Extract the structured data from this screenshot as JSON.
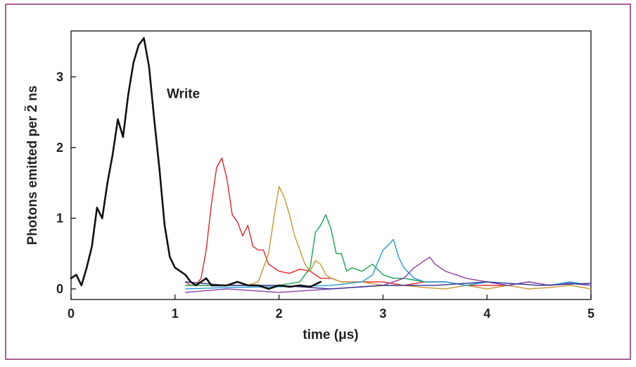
{
  "chart_data": {
    "type": "line",
    "title": "",
    "xlabel": "time (μs)",
    "ylabel": "Photons emitted per ~2 ns",
    "ylabel_display": "Photons emitted per 2̃ ns",
    "xlim": [
      0,
      5
    ],
    "ylim": [
      -0.15,
      3.65
    ],
    "xticks": [
      0,
      1,
      2,
      3,
      4,
      5
    ],
    "yticks": [
      0,
      1,
      2,
      3
    ],
    "grid": false,
    "legend": "none",
    "frame_color": "#8a2a6e",
    "annotations": [
      {
        "text": "Write",
        "x": 0.92,
        "y": 2.7
      }
    ],
    "series": [
      {
        "name": "Write",
        "color": "#111111",
        "width": 2.6,
        "x": [
          0.0,
          0.05,
          0.1,
          0.15,
          0.2,
          0.25,
          0.3,
          0.35,
          0.4,
          0.45,
          0.5,
          0.55,
          0.6,
          0.65,
          0.7,
          0.75,
          0.8,
          0.85,
          0.9,
          0.95,
          1.0,
          1.05,
          1.1,
          1.15,
          1.2,
          1.25,
          1.3,
          1.35,
          1.4,
          1.5,
          1.6,
          1.7,
          1.8,
          1.9,
          2.0,
          2.1,
          2.2,
          2.3,
          2.4
        ],
        "y": [
          0.15,
          0.2,
          0.05,
          0.3,
          0.6,
          1.15,
          1.0,
          1.5,
          1.9,
          2.4,
          2.15,
          2.75,
          3.2,
          3.45,
          3.55,
          3.15,
          2.4,
          1.7,
          0.9,
          0.45,
          0.3,
          0.25,
          0.2,
          0.1,
          0.05,
          0.1,
          0.15,
          0.05,
          0.05,
          0.05,
          0.1,
          0.05,
          0.05,
          0.0,
          0.05,
          0.03,
          0.05,
          0.03,
          0.1
        ]
      },
      {
        "name": "",
        "color": "#e0252b",
        "width": 1.4,
        "x": [
          1.1,
          1.15,
          1.2,
          1.25,
          1.3,
          1.35,
          1.4,
          1.45,
          1.5,
          1.55,
          1.6,
          1.65,
          1.7,
          1.75,
          1.8,
          1.85,
          1.9,
          1.95,
          2.0,
          2.1,
          2.2,
          2.3,
          2.4,
          2.5,
          2.6,
          2.8,
          3.0,
          3.2,
          3.4,
          3.6,
          3.8,
          4.0,
          4.2,
          4.4,
          4.6,
          4.8,
          5.0
        ],
        "y": [
          0.1,
          0.05,
          0.05,
          0.15,
          0.55,
          1.2,
          1.72,
          1.85,
          1.55,
          1.05,
          0.95,
          0.75,
          0.9,
          0.6,
          0.55,
          0.55,
          0.35,
          0.3,
          0.25,
          0.22,
          0.28,
          0.25,
          0.15,
          0.15,
          0.1,
          0.1,
          0.1,
          0.05,
          0.1,
          0.1,
          0.05,
          0.05,
          0.05,
          0.1,
          0.05,
          0.08,
          0.05
        ]
      },
      {
        "name": "",
        "color": "#c8962c",
        "width": 1.4,
        "x": [
          1.1,
          1.3,
          1.5,
          1.7,
          1.8,
          1.9,
          1.95,
          2.0,
          2.05,
          2.1,
          2.15,
          2.2,
          2.25,
          2.3,
          2.35,
          2.4,
          2.45,
          2.5,
          2.6,
          2.8,
          3.0,
          3.2,
          3.4,
          3.6,
          3.8,
          4.0,
          4.2,
          4.4,
          4.6,
          4.8,
          5.0
        ],
        "y": [
          0.05,
          0.05,
          0.05,
          0.05,
          0.1,
          0.5,
          1.0,
          1.45,
          1.3,
          1.05,
          0.75,
          0.55,
          0.35,
          0.25,
          0.4,
          0.35,
          0.2,
          0.15,
          0.1,
          0.1,
          0.05,
          0.05,
          0.02,
          0.0,
          0.05,
          0.0,
          0.05,
          0.0,
          0.02,
          0.05,
          0.0
        ]
      },
      {
        "name": "",
        "color": "#1aa052",
        "width": 1.4,
        "x": [
          1.1,
          1.5,
          2.0,
          2.2,
          2.3,
          2.35,
          2.4,
          2.45,
          2.5,
          2.55,
          2.6,
          2.65,
          2.7,
          2.8,
          2.9,
          3.0,
          3.1,
          3.2,
          3.4,
          3.6,
          3.8,
          4.0,
          4.2,
          4.4,
          4.6,
          4.8,
          5.0
        ],
        "y": [
          0.05,
          0.05,
          0.05,
          0.1,
          0.3,
          0.8,
          0.9,
          1.05,
          0.85,
          0.5,
          0.5,
          0.25,
          0.3,
          0.25,
          0.35,
          0.2,
          0.15,
          0.15,
          0.1,
          0.1,
          0.05,
          0.1,
          0.05,
          0.1,
          0.05,
          0.1,
          0.05
        ]
      },
      {
        "name": "",
        "color": "#1f9ad6",
        "width": 1.4,
        "x": [
          1.1,
          1.5,
          2.0,
          2.5,
          2.8,
          2.9,
          3.0,
          3.05,
          3.1,
          3.15,
          3.2,
          3.3,
          3.4,
          3.6,
          3.8,
          4.0,
          4.2,
          4.4,
          4.6,
          4.8,
          5.0
        ],
        "y": [
          0.0,
          0.02,
          0.03,
          0.05,
          0.1,
          0.2,
          0.55,
          0.62,
          0.7,
          0.45,
          0.3,
          0.15,
          0.1,
          0.1,
          0.05,
          0.1,
          0.05,
          0.1,
          0.05,
          0.1,
          0.05
        ]
      },
      {
        "name": "",
        "color": "#8e3fa6",
        "width": 1.4,
        "x": [
          1.1,
          1.5,
          2.0,
          2.5,
          3.0,
          3.2,
          3.3,
          3.4,
          3.45,
          3.5,
          3.6,
          3.7,
          3.8,
          4.0,
          4.2,
          4.4,
          4.6,
          4.8,
          5.0
        ],
        "y": [
          -0.05,
          0.0,
          -0.05,
          0.0,
          0.05,
          0.15,
          0.3,
          0.4,
          0.45,
          0.35,
          0.25,
          0.2,
          0.15,
          0.1,
          0.05,
          0.1,
          0.05,
          0.08,
          0.05
        ]
      },
      {
        "name": "",
        "color": "#2e3192",
        "width": 1.4,
        "x": [
          1.1,
          1.5,
          2.0,
          2.5,
          3.0,
          3.5,
          4.0,
          4.5,
          5.0
        ],
        "y": [
          0.1,
          0.05,
          0.05,
          0.0,
          0.05,
          0.05,
          0.1,
          0.05,
          0.08
        ]
      }
    ]
  }
}
